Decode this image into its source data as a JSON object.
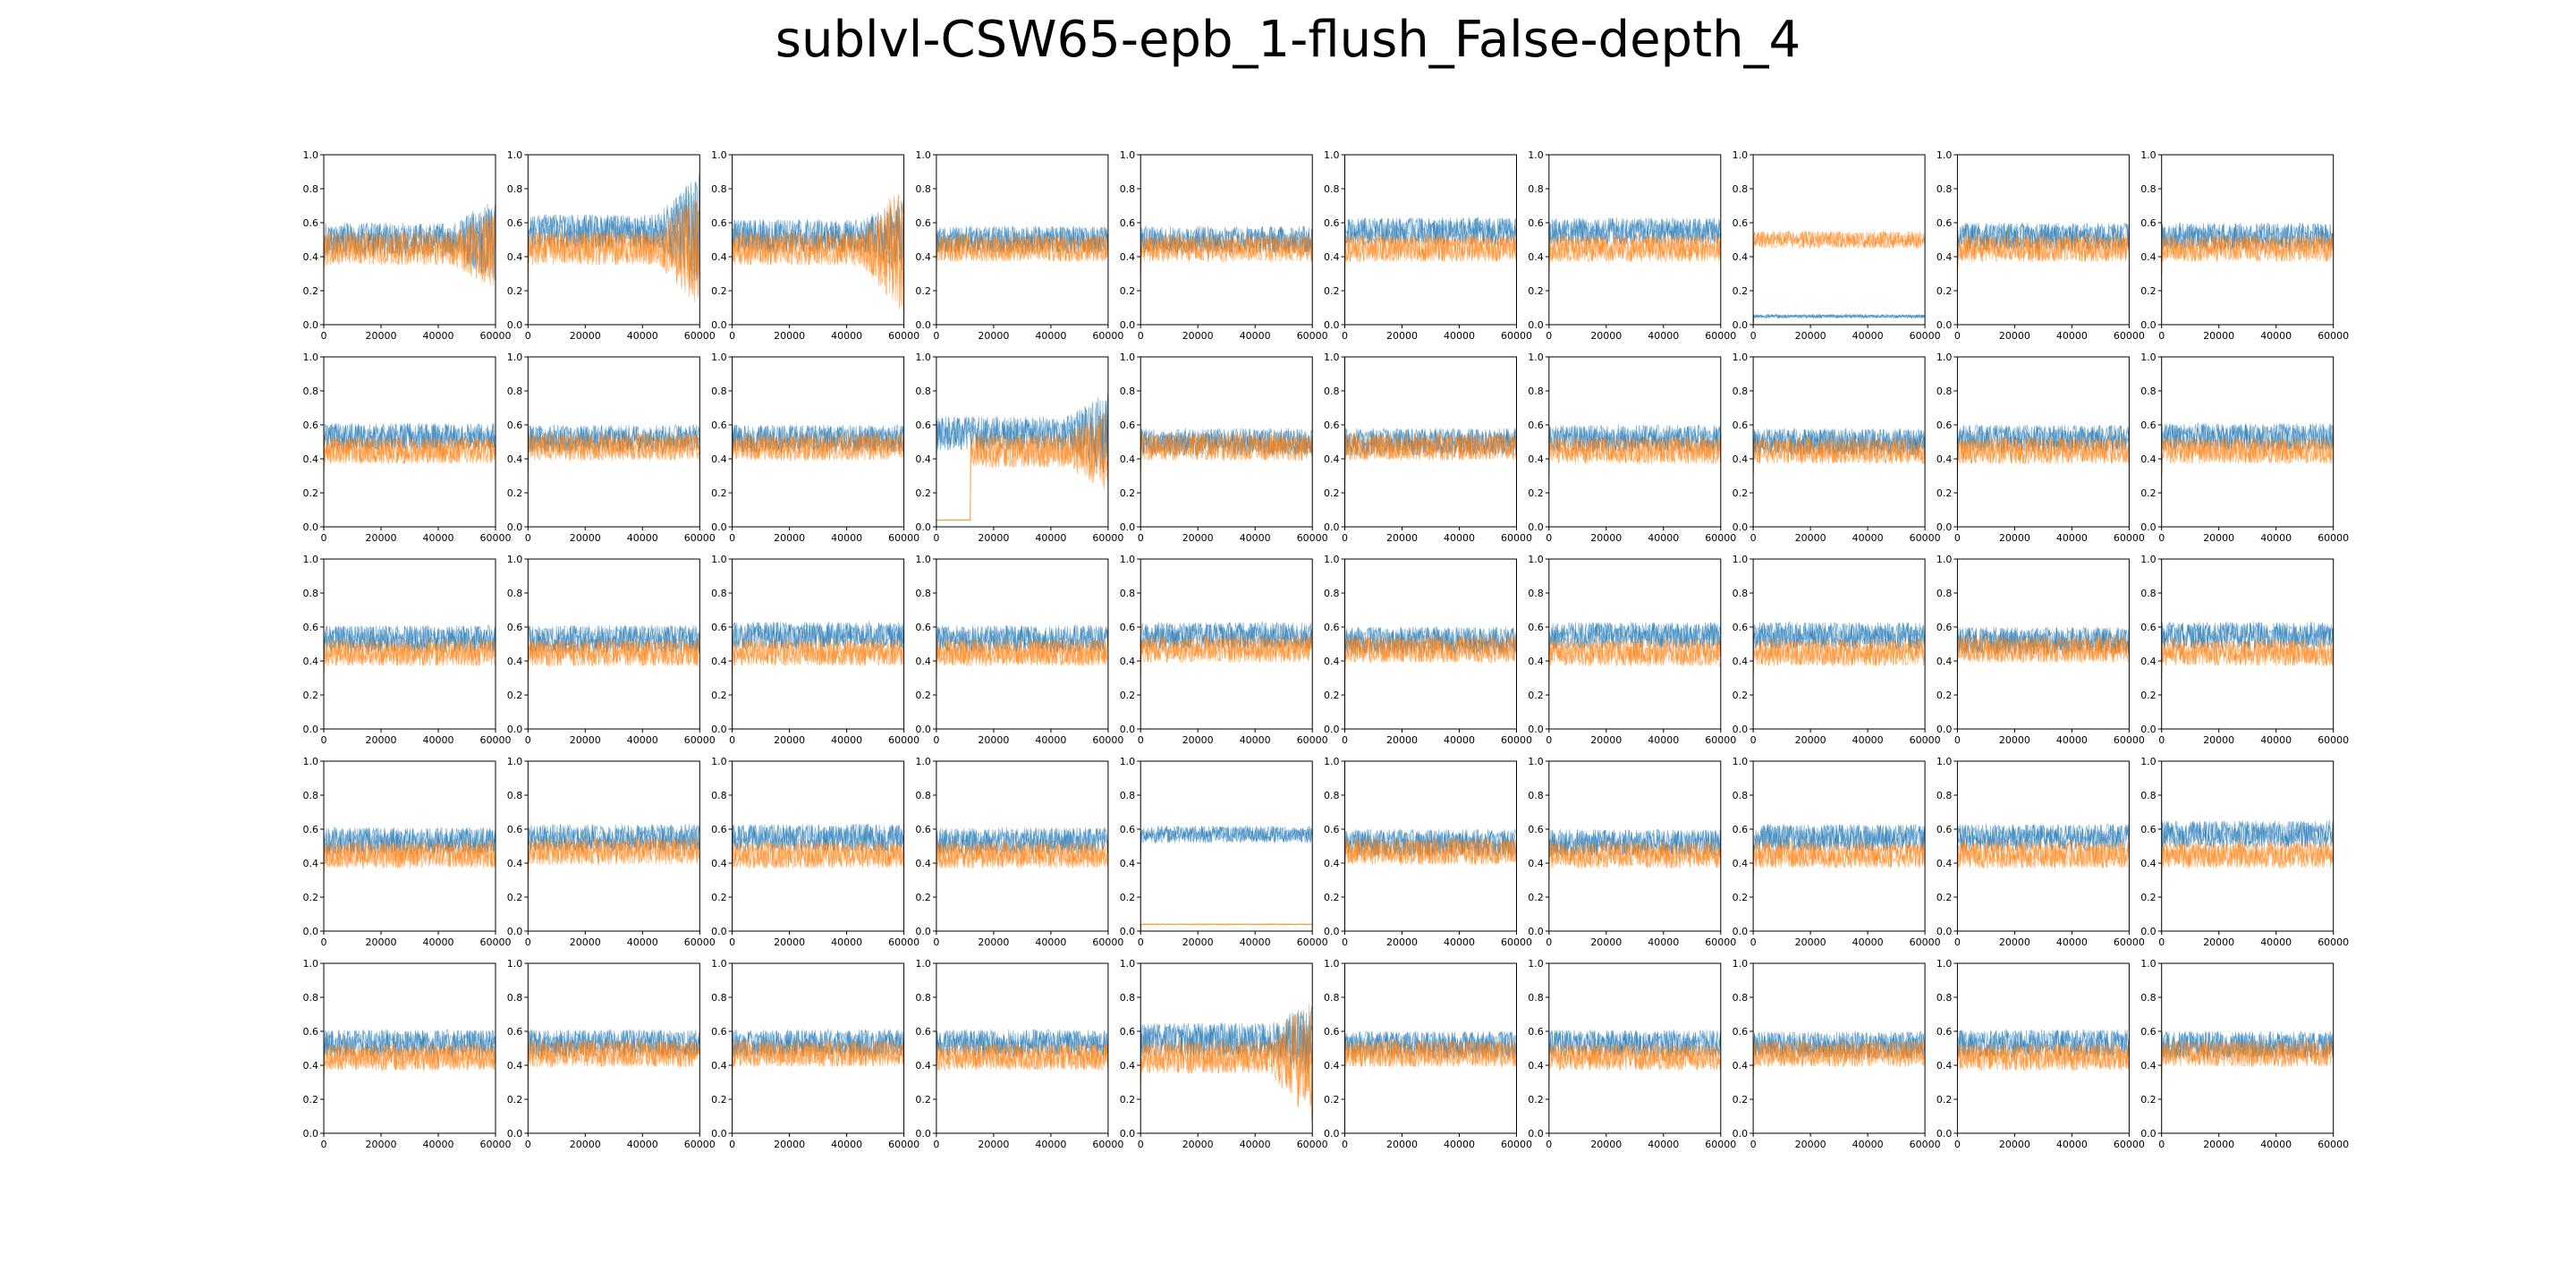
{
  "title": "sublvl-CSW65-epb_1-flush_False-depth_4",
  "colors": {
    "series1": "#1f77b4",
    "series2": "#ff7f0e",
    "axes": "#000000"
  },
  "chart_data": {
    "type": "line",
    "grid": false,
    "layout": "5 rows x 10 columns of small multiples",
    "xlim": [
      0,
      60000
    ],
    "ylim": [
      0.0,
      1.0
    ],
    "xticks": [
      "0",
      "20000",
      "40000",
      "60000"
    ],
    "yticks": [
      "0.0",
      "0.2",
      "0.4",
      "0.6",
      "0.8",
      "1.0"
    ],
    "series_colors": [
      "#1f77b4",
      "#ff7f0e"
    ],
    "panels": [
      {
        "blue": 0.5,
        "orange": 0.45,
        "amp": 0.1,
        "flare": "both"
      },
      {
        "blue": 0.55,
        "orange": 0.45,
        "amp": 0.1,
        "flare": "both-strong"
      },
      {
        "blue": 0.52,
        "orange": 0.45,
        "amp": 0.1,
        "flare": "orange-strong"
      },
      {
        "blue": 0.5,
        "orange": 0.45,
        "amp": 0.08
      },
      {
        "blue": 0.5,
        "orange": 0.45,
        "amp": 0.08
      },
      {
        "blue": 0.55,
        "orange": 0.45,
        "amp": 0.08
      },
      {
        "blue": 0.55,
        "orange": 0.45,
        "amp": 0.08
      },
      {
        "blue": 0.05,
        "orange": 0.5,
        "amp": 0.05,
        "blue_amp": 0.01
      },
      {
        "blue": 0.52,
        "orange": 0.45,
        "amp": 0.08
      },
      {
        "blue": 0.52,
        "orange": 0.45,
        "amp": 0.08
      },
      {
        "blue": 0.53,
        "orange": 0.45,
        "amp": 0.08
      },
      {
        "blue": 0.52,
        "orange": 0.47,
        "amp": 0.08
      },
      {
        "blue": 0.52,
        "orange": 0.47,
        "amp": 0.08
      },
      {
        "blue": 0.55,
        "orange": 0.45,
        "amp": 0.1,
        "orange_low_until": 12000,
        "flare": "both"
      },
      {
        "blue": 0.5,
        "orange": 0.47,
        "amp": 0.08
      },
      {
        "blue": 0.5,
        "orange": 0.47,
        "amp": 0.08
      },
      {
        "blue": 0.52,
        "orange": 0.45,
        "amp": 0.08
      },
      {
        "blue": 0.5,
        "orange": 0.45,
        "amp": 0.08
      },
      {
        "blue": 0.52,
        "orange": 0.45,
        "amp": 0.08
      },
      {
        "blue": 0.53,
        "orange": 0.45,
        "amp": 0.08
      },
      {
        "blue": 0.53,
        "orange": 0.45,
        "amp": 0.08
      },
      {
        "blue": 0.53,
        "orange": 0.45,
        "amp": 0.08
      },
      {
        "blue": 0.55,
        "orange": 0.45,
        "amp": 0.08
      },
      {
        "blue": 0.53,
        "orange": 0.45,
        "amp": 0.08
      },
      {
        "blue": 0.55,
        "orange": 0.47,
        "amp": 0.08
      },
      {
        "blue": 0.52,
        "orange": 0.47,
        "amp": 0.08
      },
      {
        "blue": 0.55,
        "orange": 0.45,
        "amp": 0.08
      },
      {
        "blue": 0.55,
        "orange": 0.45,
        "amp": 0.08
      },
      {
        "blue": 0.52,
        "orange": 0.47,
        "amp": 0.08
      },
      {
        "blue": 0.55,
        "orange": 0.45,
        "amp": 0.08
      },
      {
        "blue": 0.53,
        "orange": 0.45,
        "amp": 0.08
      },
      {
        "blue": 0.55,
        "orange": 0.47,
        "amp": 0.08
      },
      {
        "blue": 0.55,
        "orange": 0.45,
        "amp": 0.08
      },
      {
        "blue": 0.53,
        "orange": 0.45,
        "amp": 0.08
      },
      {
        "blue": 0.57,
        "orange": 0.04,
        "amp": 0.05,
        "orange_amp": 0.003
      },
      {
        "blue": 0.52,
        "orange": 0.47,
        "amp": 0.08
      },
      {
        "blue": 0.52,
        "orange": 0.45,
        "amp": 0.08
      },
      {
        "blue": 0.55,
        "orange": 0.45,
        "amp": 0.08
      },
      {
        "blue": 0.55,
        "orange": 0.45,
        "amp": 0.08
      },
      {
        "blue": 0.57,
        "orange": 0.45,
        "amp": 0.08
      },
      {
        "blue": 0.53,
        "orange": 0.45,
        "amp": 0.08
      },
      {
        "blue": 0.53,
        "orange": 0.47,
        "amp": 0.08
      },
      {
        "blue": 0.53,
        "orange": 0.47,
        "amp": 0.08
      },
      {
        "blue": 0.53,
        "orange": 0.45,
        "amp": 0.08
      },
      {
        "blue": 0.55,
        "orange": 0.45,
        "amp": 0.1,
        "flare": "orange-strong"
      },
      {
        "blue": 0.52,
        "orange": 0.47,
        "amp": 0.08
      },
      {
        "blue": 0.53,
        "orange": 0.45,
        "amp": 0.08
      },
      {
        "blue": 0.52,
        "orange": 0.47,
        "amp": 0.08
      },
      {
        "blue": 0.53,
        "orange": 0.45,
        "amp": 0.08
      },
      {
        "blue": 0.52,
        "orange": 0.47,
        "amp": 0.08
      }
    ]
  }
}
